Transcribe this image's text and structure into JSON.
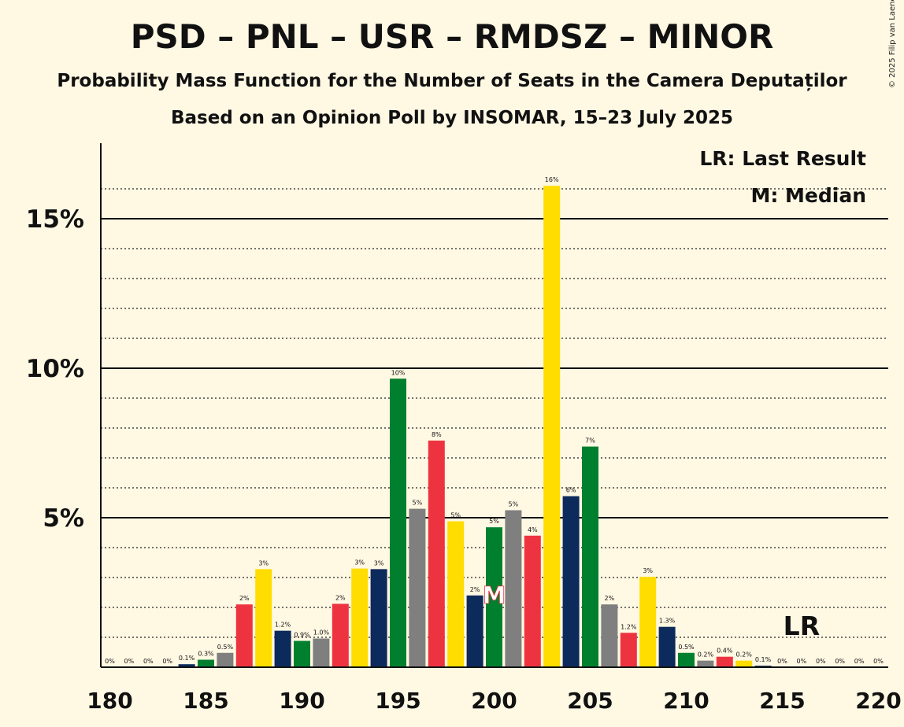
{
  "chart_data": {
    "type": "bar",
    "title": "PSD – PNL – USR – RMDSZ – MINOR",
    "subtitle": "Probability Mass Function for the Number of Seats in the Camera Deputaților",
    "subtitle2": "Based on an Opinion Poll by INSOMAR, 15–23 July 2025",
    "copyright": "© 2025 Filip van Laenen",
    "xlim": [
      180,
      220
    ],
    "ylim": [
      0,
      17
    ],
    "x_ticks": [
      "180",
      "185",
      "190",
      "195",
      "200",
      "205",
      "210",
      "215",
      "220"
    ],
    "y_ticks": [
      {
        "value": 5,
        "label": "5%"
      },
      {
        "value": 10,
        "label": "10%"
      },
      {
        "value": 15,
        "label": "15%"
      }
    ],
    "grid": true,
    "legend": [
      "LR: Last Result",
      "M: Median"
    ],
    "last_result_seat": 216,
    "last_result_label": "LR",
    "median_seat": 200,
    "median_label": "M",
    "colors": [
      "#00802f",
      "#7f7f7f",
      "#ee3340",
      "#ffdd00",
      "#0c2a5b"
    ],
    "bars": [
      {
        "seat": 180,
        "value": 0,
        "label": "0%"
      },
      {
        "seat": 181,
        "value": 0,
        "label": "0%"
      },
      {
        "seat": 182,
        "value": 0,
        "label": "0%"
      },
      {
        "seat": 183,
        "value": 0,
        "label": "0%"
      },
      {
        "seat": 184,
        "value": 0.1,
        "label": "0.1%"
      },
      {
        "seat": 185,
        "value": 0.25,
        "label": "0.3%"
      },
      {
        "seat": 186,
        "value": 0.48,
        "label": "0.5%"
      },
      {
        "seat": 187,
        "value": 2.1,
        "label": "2%"
      },
      {
        "seat": 188,
        "value": 3.28,
        "label": "3%"
      },
      {
        "seat": 189,
        "value": 1.22,
        "label": "1.2%"
      },
      {
        "seat": 190,
        "value": 0.88,
        "label": "0.9%"
      },
      {
        "seat": 191,
        "value": 0.96,
        "label": "1.0%"
      },
      {
        "seat": 192,
        "value": 2.12,
        "label": "2%"
      },
      {
        "seat": 193,
        "value": 3.3,
        "label": "3%"
      },
      {
        "seat": 194,
        "value": 3.28,
        "label": "3%"
      },
      {
        "seat": 195,
        "value": 9.65,
        "label": "10%"
      },
      {
        "seat": 196,
        "value": 5.3,
        "label": "5%"
      },
      {
        "seat": 197,
        "value": 7.58,
        "label": "8%"
      },
      {
        "seat": 198,
        "value": 4.88,
        "label": "5%"
      },
      {
        "seat": 199,
        "value": 2.4,
        "label": "2%"
      },
      {
        "seat": 200,
        "value": 4.68,
        "label": "5%"
      },
      {
        "seat": 201,
        "value": 5.25,
        "label": "5%"
      },
      {
        "seat": 202,
        "value": 4.4,
        "label": "4%"
      },
      {
        "seat": 203,
        "value": 16.1,
        "label": "16%"
      },
      {
        "seat": 204,
        "value": 5.72,
        "label": "6%"
      },
      {
        "seat": 205,
        "value": 7.38,
        "label": "7%"
      },
      {
        "seat": 206,
        "value": 2.1,
        "label": "2%"
      },
      {
        "seat": 207,
        "value": 1.15,
        "label": "1.2%"
      },
      {
        "seat": 208,
        "value": 3.02,
        "label": "3%"
      },
      {
        "seat": 209,
        "value": 1.35,
        "label": "1.3%"
      },
      {
        "seat": 210,
        "value": 0.48,
        "label": "0.5%"
      },
      {
        "seat": 211,
        "value": 0.22,
        "label": "0.2%"
      },
      {
        "seat": 212,
        "value": 0.35,
        "label": "0.4%"
      },
      {
        "seat": 213,
        "value": 0.22,
        "label": "0.2%"
      },
      {
        "seat": 214,
        "value": 0.05,
        "label": "0.1%"
      },
      {
        "seat": 215,
        "value": 0,
        "label": "0%"
      },
      {
        "seat": 216,
        "value": 0,
        "label": "0%"
      },
      {
        "seat": 217,
        "value": 0,
        "label": "0%"
      },
      {
        "seat": 218,
        "value": 0,
        "label": "0%"
      },
      {
        "seat": 219,
        "value": 0,
        "label": "0%"
      },
      {
        "seat": 220,
        "value": 0,
        "label": "0%"
      }
    ]
  }
}
